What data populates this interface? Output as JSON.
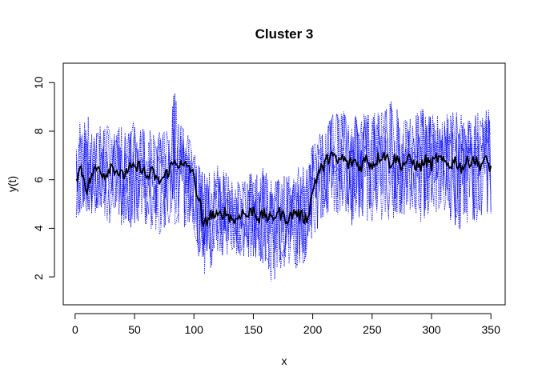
{
  "chart_data": {
    "type": "line",
    "title": "Cluster 3",
    "xlabel": "x",
    "ylabel": "y(t)",
    "xlim": [
      -10,
      362
    ],
    "ylim": [
      0.85,
      10.8
    ],
    "x_ticks": [
      0,
      50,
      100,
      150,
      200,
      250,
      300,
      350
    ],
    "y_ticks": [
      2,
      4,
      6,
      8,
      10
    ],
    "grid": false,
    "legend": "none",
    "colors": {
      "members": "#0000ff",
      "centroid": "#000000"
    },
    "series": [
      {
        "role": "mean",
        "points": [
          [
            1,
            6.1
          ],
          [
            5,
            6.5
          ],
          [
            10,
            5.6
          ],
          [
            15,
            6.3
          ],
          [
            20,
            6.5
          ],
          [
            25,
            6.2
          ],
          [
            30,
            6.6
          ],
          [
            35,
            6.4
          ],
          [
            40,
            6.1
          ],
          [
            45,
            6.5
          ],
          [
            50,
            6.4
          ],
          [
            55,
            6.6
          ],
          [
            60,
            6.1
          ],
          [
            65,
            6.3
          ],
          [
            70,
            5.9
          ],
          [
            75,
            6.1
          ],
          [
            80,
            6.5
          ],
          [
            85,
            6.8
          ],
          [
            90,
            6.5
          ],
          [
            95,
            6.6
          ],
          [
            98,
            6.4
          ],
          [
            100,
            6.0
          ],
          [
            103,
            5.4
          ],
          [
            106,
            4.8
          ],
          [
            108,
            3.9
          ],
          [
            110,
            4.3
          ],
          [
            115,
            4.6
          ],
          [
            120,
            4.4
          ],
          [
            125,
            4.7
          ],
          [
            130,
            4.5
          ],
          [
            135,
            4.3
          ],
          [
            140,
            4.7
          ],
          [
            145,
            4.5
          ],
          [
            150,
            4.8
          ],
          [
            155,
            4.4
          ],
          [
            160,
            4.6
          ],
          [
            165,
            4.3
          ],
          [
            170,
            4.7
          ],
          [
            175,
            4.5
          ],
          [
            180,
            4.4
          ],
          [
            185,
            4.7
          ],
          [
            190,
            4.5
          ],
          [
            195,
            4.4
          ],
          [
            198,
            5.0
          ],
          [
            201,
            5.8
          ],
          [
            205,
            6.3
          ],
          [
            210,
            6.6
          ],
          [
            215,
            7.1
          ],
          [
            220,
            6.7
          ],
          [
            225,
            6.9
          ],
          [
            230,
            6.6
          ],
          [
            235,
            6.8
          ],
          [
            240,
            6.5
          ],
          [
            245,
            6.9
          ],
          [
            250,
            6.6
          ],
          [
            255,
            6.9
          ],
          [
            260,
            7.1
          ],
          [
            265,
            6.7
          ],
          [
            270,
            6.9
          ],
          [
            275,
            6.6
          ],
          [
            280,
            6.8
          ],
          [
            285,
            6.7
          ],
          [
            290,
            6.5
          ],
          [
            295,
            6.8
          ],
          [
            300,
            6.6
          ],
          [
            305,
            6.9
          ],
          [
            310,
            6.7
          ],
          [
            315,
            6.6
          ],
          [
            320,
            6.8
          ],
          [
            325,
            6.5
          ],
          [
            330,
            6.7
          ],
          [
            335,
            6.9
          ],
          [
            340,
            6.6
          ],
          [
            345,
            6.8
          ],
          [
            350,
            6.5
          ]
        ]
      },
      {
        "role": "members",
        "count": 5,
        "envelope_upper": [
          [
            0,
            8.3
          ],
          [
            10,
            8.9
          ],
          [
            20,
            8.6
          ],
          [
            30,
            8.5
          ],
          [
            40,
            8.4
          ],
          [
            50,
            8.6
          ],
          [
            60,
            8.3
          ],
          [
            70,
            8.5
          ],
          [
            80,
            8.6
          ],
          [
            84,
            10.4
          ],
          [
            90,
            8.4
          ],
          [
            100,
            7.5
          ],
          [
            105,
            6.8
          ],
          [
            110,
            6.6
          ],
          [
            120,
            6.8
          ],
          [
            130,
            6.4
          ],
          [
            140,
            6.2
          ],
          [
            150,
            6.6
          ],
          [
            160,
            6.8
          ],
          [
            170,
            6.3
          ],
          [
            180,
            6.4
          ],
          [
            190,
            6.8
          ],
          [
            200,
            7.6
          ],
          [
            210,
            8.3
          ],
          [
            220,
            9.2
          ],
          [
            230,
            8.9
          ],
          [
            240,
            8.8
          ],
          [
            250,
            9.1
          ],
          [
            260,
            8.9
          ],
          [
            265,
            9.9
          ],
          [
            270,
            9.2
          ],
          [
            280,
            8.9
          ],
          [
            290,
            9.2
          ],
          [
            300,
            9.0
          ],
          [
            310,
            8.8
          ],
          [
            320,
            9.1
          ],
          [
            330,
            8.8
          ],
          [
            340,
            9.0
          ],
          [
            350,
            9.2
          ]
        ],
        "envelope_lower": [
          [
            0,
            4.3
          ],
          [
            10,
            4.4
          ],
          [
            20,
            4.4
          ],
          [
            30,
            3.9
          ],
          [
            40,
            3.9
          ],
          [
            50,
            3.7
          ],
          [
            60,
            3.9
          ],
          [
            70,
            3.5
          ],
          [
            80,
            4.0
          ],
          [
            90,
            3.9
          ],
          [
            100,
            3.4
          ],
          [
            105,
            2.4
          ],
          [
            110,
            1.7
          ],
          [
            120,
            2.8
          ],
          [
            130,
            2.6
          ],
          [
            140,
            2.7
          ],
          [
            150,
            2.6
          ],
          [
            160,
            2.3
          ],
          [
            166,
            1.2
          ],
          [
            170,
            2.0
          ],
          [
            180,
            2.2
          ],
          [
            190,
            2.0
          ],
          [
            200,
            3.4
          ],
          [
            210,
            4.2
          ],
          [
            220,
            4.4
          ],
          [
            230,
            3.7
          ],
          [
            240,
            4.2
          ],
          [
            250,
            3.9
          ],
          [
            260,
            4.1
          ],
          [
            270,
            4.2
          ],
          [
            280,
            4.4
          ],
          [
            290,
            3.8
          ],
          [
            300,
            4.0
          ],
          [
            310,
            4.4
          ],
          [
            320,
            3.9
          ],
          [
            325,
            3.4
          ],
          [
            330,
            3.9
          ],
          [
            340,
            4.0
          ],
          [
            350,
            4.4
          ]
        ]
      }
    ]
  }
}
